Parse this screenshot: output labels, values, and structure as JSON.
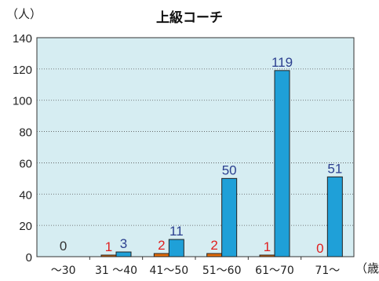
{
  "chart_data": {
    "type": "bar",
    "title": "上級コーチ",
    "ylabel": "（人）",
    "xlabel": "（歳）",
    "ylim": [
      0,
      140
    ],
    "yticks": [
      0,
      20,
      40,
      60,
      80,
      100,
      120,
      140
    ],
    "grid": true,
    "categories": [
      "～30",
      "31 ～40",
      "41～50",
      "51～60",
      "61～70",
      "71～"
    ],
    "series": [
      {
        "values": [
          0,
          1,
          2,
          2,
          1,
          0
        ],
        "color": "#e36c0a",
        "label_color": "#e02020"
      },
      {
        "values": [
          0,
          3,
          11,
          50,
          119,
          51
        ],
        "color": "#1fa0d8",
        "label_color": "#2b3f8f"
      }
    ],
    "bar_labels": [
      {
        "category_index": 0,
        "text": "0",
        "color": "#333333"
      },
      {
        "category_index": 1,
        "text": "1",
        "color": "#e02020"
      },
      {
        "category_index": 1,
        "text": "3",
        "color": "#2b3f8f"
      },
      {
        "category_index": 2,
        "text": "2",
        "color": "#e02020"
      },
      {
        "category_index": 2,
        "text": "11",
        "color": "#2b3f8f"
      },
      {
        "category_index": 3,
        "text": "2",
        "color": "#e02020"
      },
      {
        "category_index": 3,
        "text": "50",
        "color": "#2b3f8f"
      },
      {
        "category_index": 4,
        "text": "1",
        "color": "#e02020"
      },
      {
        "category_index": 4,
        "text": "119",
        "color": "#2b3f8f"
      },
      {
        "category_index": 5,
        "text": "0",
        "color": "#e02020"
      },
      {
        "category_index": 5,
        "text": "51",
        "color": "#2b3f8f"
      }
    ],
    "plot_background": "#d6edf2"
  }
}
